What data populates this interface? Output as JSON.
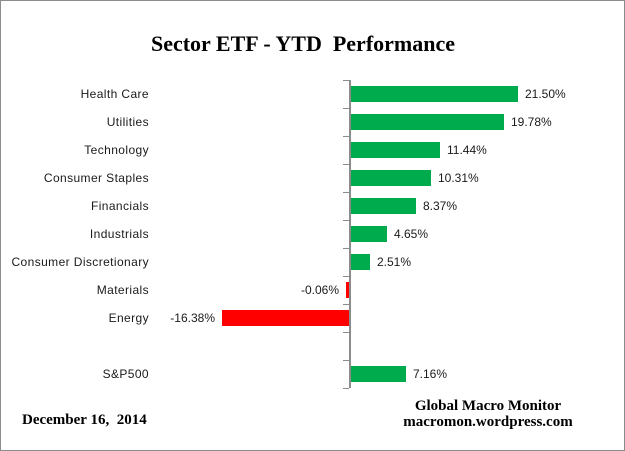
{
  "chart_data": {
    "type": "bar",
    "orientation": "horizontal",
    "title": "Sector ETF - YTD  Performance",
    "categories": [
      "Health Care",
      "Utilities",
      "Technology",
      "Consumer Staples",
      "Financials",
      "Industrials",
      "Consumer Discretionary",
      "Materials",
      "Energy",
      "S&P500"
    ],
    "values": [
      21.5,
      19.78,
      11.44,
      10.31,
      8.37,
      4.65,
      2.51,
      -0.06,
      -16.38,
      7.16
    ],
    "data_labels": [
      "21.50%",
      "19.78%",
      "11.44%",
      "10.31%",
      "8.37%",
      "4.65%",
      "2.51%",
      "-0.06%",
      "-16.38%",
      "7.16%"
    ],
    "spacer_after": "Energy",
    "xlim": [
      -26,
      35
    ],
    "grid": false,
    "legend": false,
    "value_axis_labels_visible": false
  },
  "footer": {
    "date": "December 16,  2014",
    "source_line1": "Global Macro Monitor",
    "source_line2": "macromon.wordpress.com"
  },
  "colors": {
    "positive": "#00AB4E",
    "negative": "#FF0000",
    "axis": "#8c8c8c",
    "border": "#8c8c8c",
    "background": "#ffffff",
    "text": "#1a1a1a"
  }
}
